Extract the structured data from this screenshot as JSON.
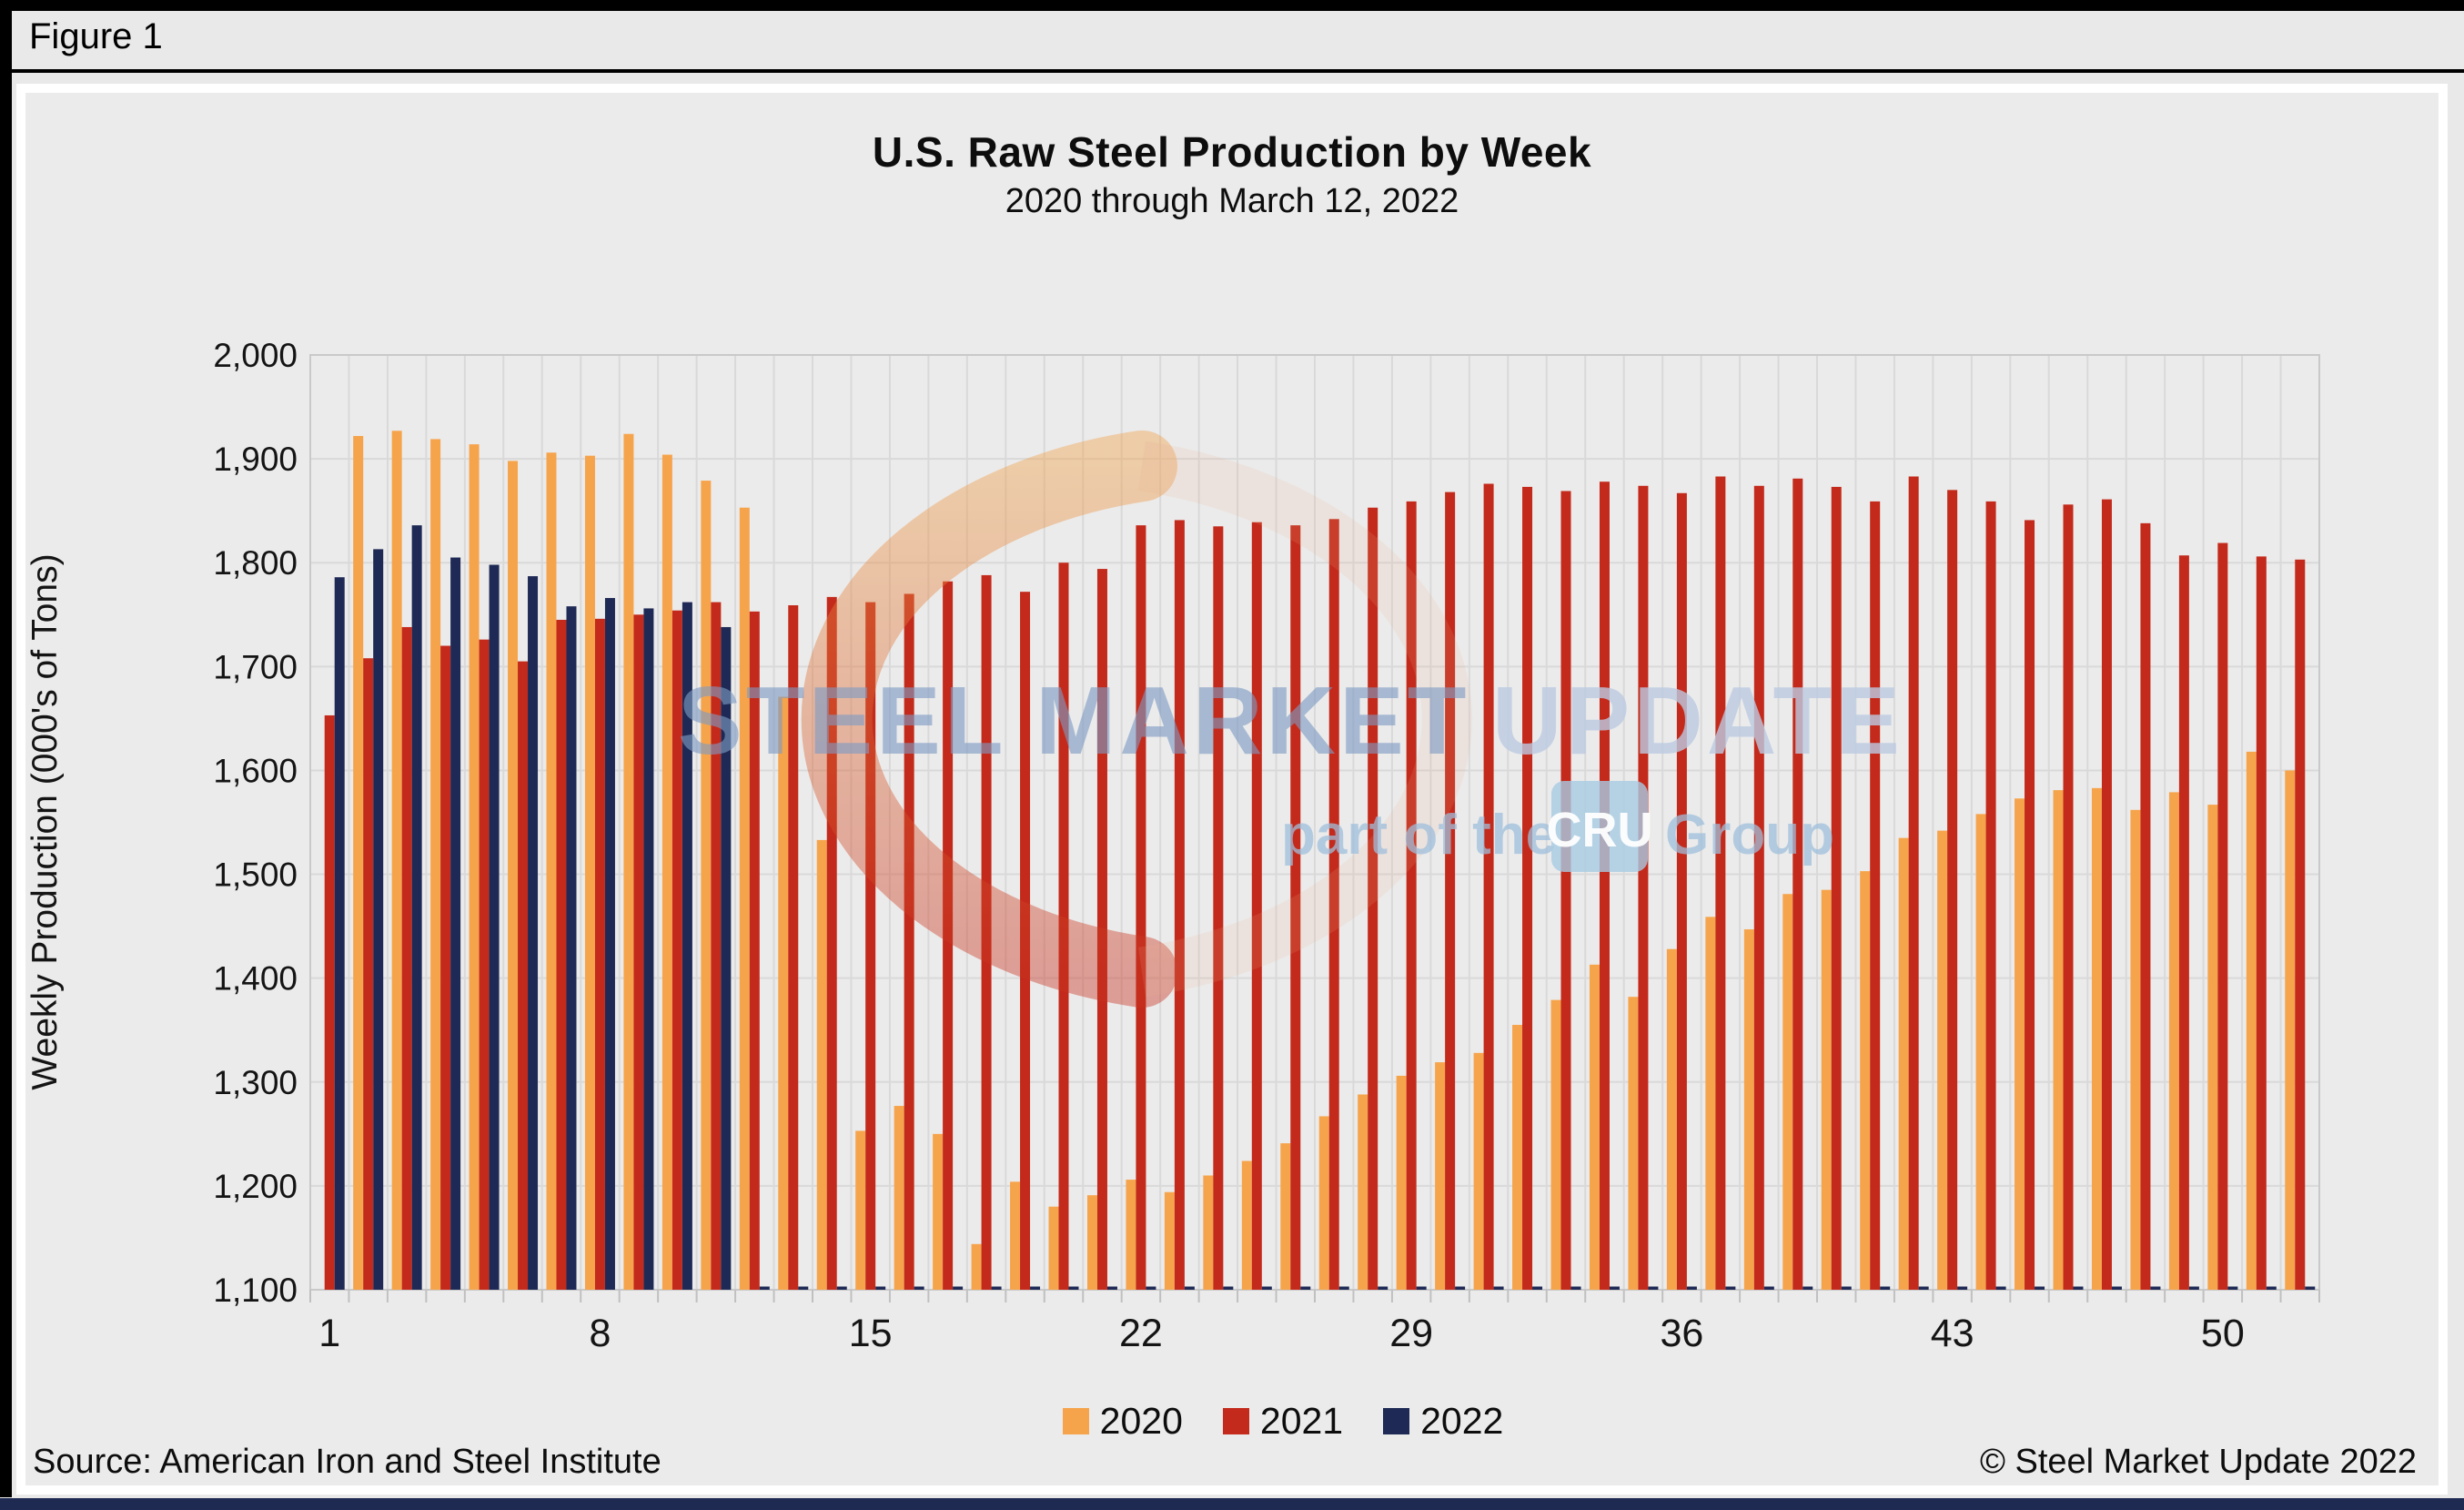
{
  "figure_label": "Figure 1",
  "chart_data": {
    "type": "bar",
    "title": "U.S. Raw Steel Production by Week",
    "subtitle": "2020 through March 12, 2022",
    "ylabel": "Weekly Production (000's of Tons)",
    "ylim": [
      1100,
      2000
    ],
    "ytick_step": 100,
    "yticks": [
      2000,
      1900,
      1800,
      1700,
      1600,
      1500,
      1400,
      1300,
      1200,
      1100
    ],
    "xticks": [
      1,
      8,
      15,
      22,
      29,
      36,
      43,
      50
    ],
    "weeks": 52,
    "grid": true,
    "legend_position": "bottom",
    "series": [
      {
        "name": "2020",
        "color": "#f6a44c",
        "values": [
          null,
          1922,
          1927,
          1919,
          1914,
          1898,
          1906,
          1903,
          1924,
          1904,
          1879,
          1853,
          1671,
          1533,
          1253,
          1277,
          1250,
          1144,
          1204,
          1180,
          1191,
          1206,
          1194,
          1210,
          1224,
          1241,
          1267,
          1288,
          1306,
          1319,
          1328,
          1355,
          1379,
          1413,
          1382,
          1428,
          1459,
          1447,
          1481,
          1485,
          1503,
          1535,
          1542,
          1558,
          1573,
          1581,
          1583,
          1562,
          1579,
          1567,
          1618,
          1600
        ]
      },
      {
        "name": "2021",
        "color": "#c32a1b",
        "values": [
          1653,
          1708,
          1738,
          1720,
          1726,
          1705,
          1745,
          1746,
          1750,
          1754,
          1762,
          1753,
          1759,
          1767,
          1762,
          1770,
          1782,
          1788,
          1772,
          1800,
          1794,
          1836,
          1841,
          1835,
          1839,
          1836,
          1842,
          1853,
          1859,
          1868,
          1876,
          1873,
          1869,
          1878,
          1874,
          1867,
          1883,
          1874,
          1881,
          1873,
          1859,
          1883,
          1870,
          1859,
          1841,
          1856,
          1861,
          1838,
          1807,
          1819,
          1806,
          1803
        ]
      },
      {
        "name": "2022",
        "color": "#1e2a55",
        "values": [
          1786,
          1813,
          1836,
          1805,
          1798,
          1787,
          1758,
          1766,
          1756,
          1762,
          1738,
          0,
          0,
          0,
          0,
          0,
          0,
          0,
          0,
          0,
          0,
          0,
          0,
          0,
          0,
          0,
          0,
          0,
          0,
          0,
          0,
          0,
          0,
          0,
          0,
          0,
          0,
          0,
          0,
          0,
          0,
          0,
          0,
          0,
          0,
          0,
          0,
          0,
          0,
          0,
          0,
          0
        ]
      }
    ]
  },
  "watermark": {
    "line1_strong": "STEEL MARKET",
    "line1_light": "UPDATE",
    "line2_pre": "part of the",
    "line2_box": "CRU",
    "line2_post": "Group"
  },
  "footer": {
    "source": "Source: American Iron and Steel Institute",
    "copyright": "© Steel Market Update 2022"
  },
  "colors": {
    "grid": "#d9d9d9",
    "plot_border": "#c9c9c9",
    "tick": "#c0c0c0",
    "axis_text": "#141414",
    "bottom_strip": "#1e2a52",
    "watermark_text_strong": "#7e9bc4",
    "watermark_text_light": "#bccbe2",
    "watermark_text_line2": "#9fbfdc",
    "watermark_box": "#a8cce4",
    "watermark_ring_top": "#f0a04a",
    "watermark_ring_bottom": "#c83220"
  }
}
